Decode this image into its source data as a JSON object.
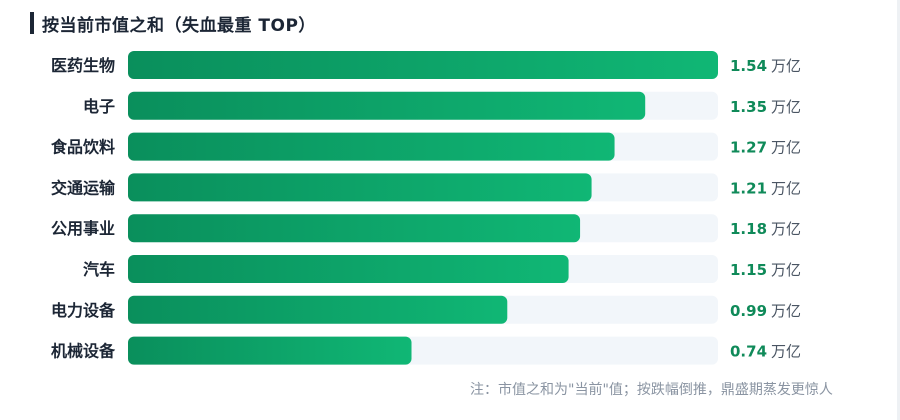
{
  "chart_data": {
    "type": "bar",
    "orientation": "horizontal",
    "title": "按当前市值之和（失血最重 TOP）",
    "categories": [
      "医药生物",
      "电子",
      "食品饮料",
      "交通运输",
      "公用事业",
      "汽车",
      "电力设备",
      "机械设备"
    ],
    "values": [
      1.54,
      1.35,
      1.27,
      1.21,
      1.18,
      1.15,
      0.99,
      0.74
    ],
    "unit": "万亿",
    "value_labels": [
      "1.54",
      "1.35",
      "1.27",
      "1.21",
      "1.18",
      "1.15",
      "0.99",
      "0.74"
    ],
    "xlim": [
      0,
      1.54
    ],
    "grid": false,
    "legend": "none"
  },
  "note": "注：市值之和为\"当前\"值；按跌幅倒推，鼎盛期蒸发更惊人",
  "colors": {
    "bar_start": "#0a8f5c",
    "bar_end": "#10b775",
    "track": "#f2f6fa",
    "value_text": "#0f8a59",
    "category_text": "#1c2635",
    "unit_text": "#4a5563"
  }
}
